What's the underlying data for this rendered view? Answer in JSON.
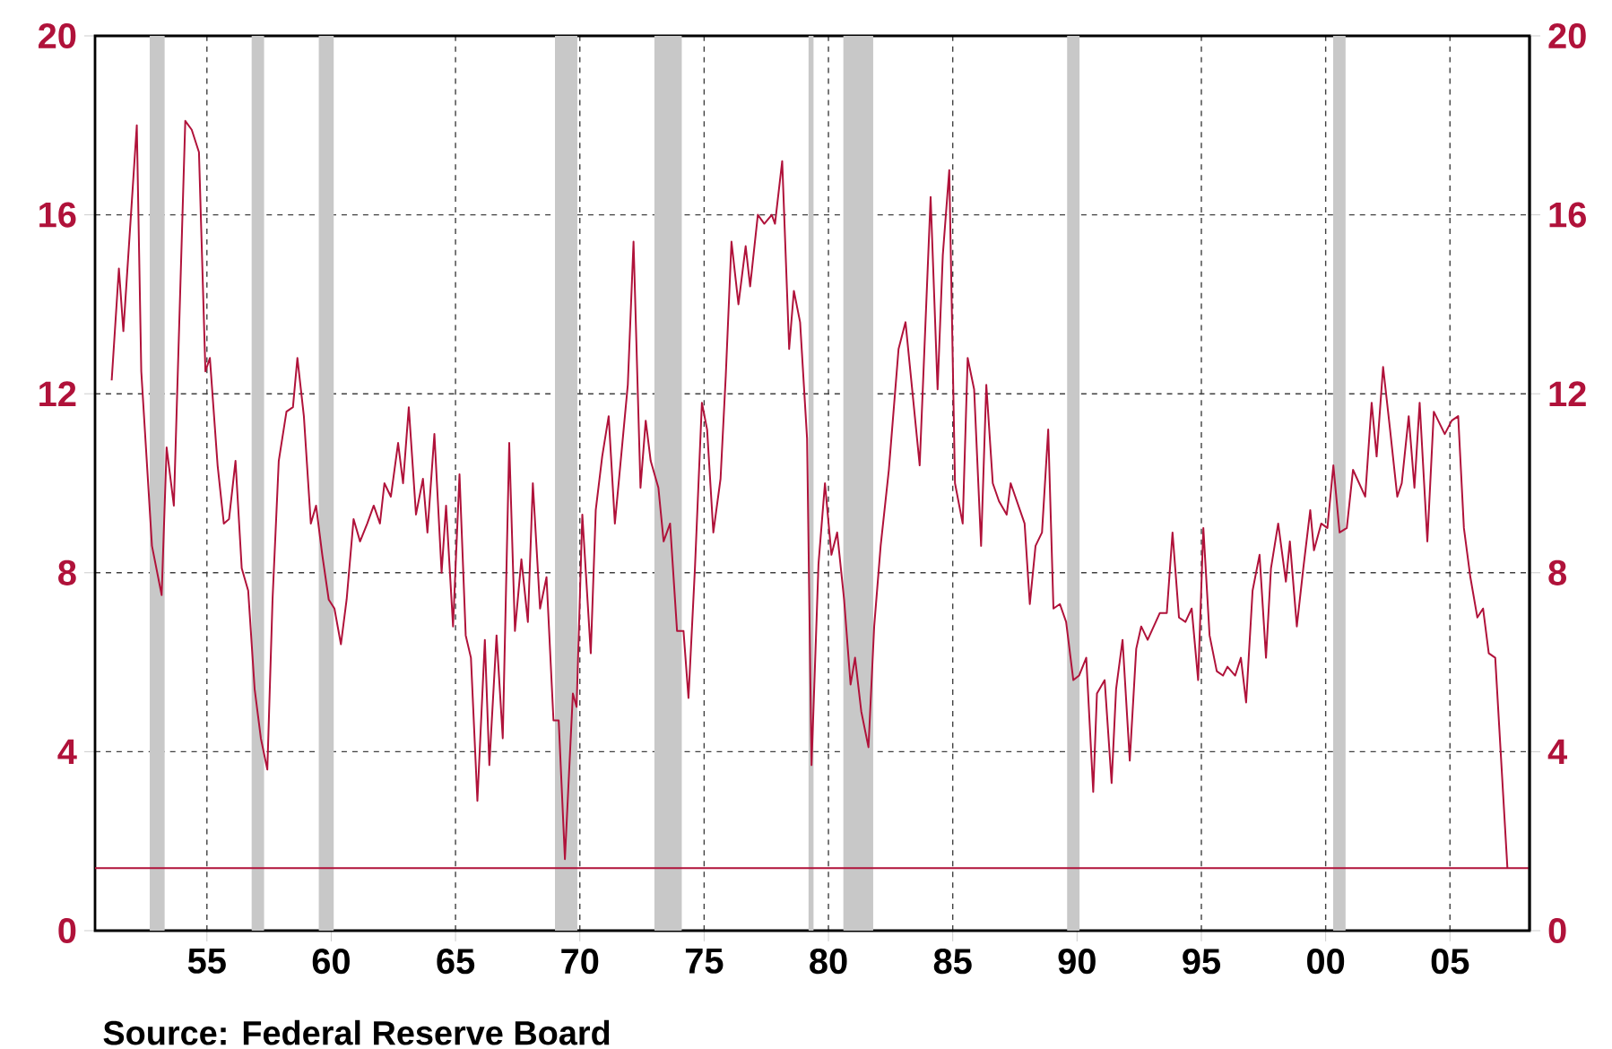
{
  "chart_data": {
    "type": "line",
    "xlim": [
      1950.5,
      2008.2
    ],
    "xticks": [
      {
        "value": 1955,
        "label": "55"
      },
      {
        "value": 1960,
        "label": "60"
      },
      {
        "value": 1965,
        "label": "65"
      },
      {
        "value": 1970,
        "label": "70"
      },
      {
        "value": 1975,
        "label": "75"
      },
      {
        "value": 1980,
        "label": "80"
      },
      {
        "value": 1985,
        "label": "85"
      },
      {
        "value": 1990,
        "label": "90"
      },
      {
        "value": 1995,
        "label": "95"
      },
      {
        "value": 2000,
        "label": "00"
      },
      {
        "value": 2005,
        "label": "05"
      }
    ],
    "ylim": [
      0,
      20
    ],
    "yticks": [
      0,
      4,
      8,
      12,
      16,
      20
    ],
    "y2lim": [
      0,
      20
    ],
    "y2ticks": [
      0,
      4,
      8,
      12,
      16,
      20
    ],
    "grid": true,
    "series": [
      {
        "color": "#b0123a",
        "x": [
          1951.17,
          1951.46,
          1951.64,
          1952.18,
          1952.36,
          1952.79,
          1953.18,
          1953.38,
          1953.67,
          1954.13,
          1954.39,
          1954.68,
          1954.94,
          1955.12,
          1955.43,
          1955.68,
          1955.89,
          1956.15,
          1956.4,
          1956.66,
          1956.92,
          1957.17,
          1957.43,
          1957.64,
          1957.89,
          1958.2,
          1958.46,
          1958.64,
          1958.9,
          1959.18,
          1959.39,
          1959.64,
          1959.9,
          1960.13,
          1960.39,
          1960.62,
          1960.9,
          1961.16,
          1961.45,
          1961.71,
          1961.96,
          1962.14,
          1962.4,
          1962.69,
          1962.89,
          1963.12,
          1963.41,
          1963.69,
          1963.87,
          1964.15,
          1964.44,
          1964.62,
          1964.9,
          1965.16,
          1965.41,
          1965.62,
          1965.88,
          1966.18,
          1966.36,
          1966.65,
          1966.9,
          1967.16,
          1967.39,
          1967.65,
          1967.91,
          1968.11,
          1968.4,
          1968.66,
          1968.94,
          1969.15,
          1969.4,
          1969.72,
          1969.87,
          1970.1,
          1970.44,
          1970.64,
          1970.9,
          1971.16,
          1971.41,
          1971.93,
          1972.16,
          1972.44,
          1972.65,
          1972.85,
          1973.16,
          1973.37,
          1973.63,
          1973.91,
          1974.17,
          1974.37,
          1974.63,
          1974.91,
          1975.12,
          1975.37,
          1975.66,
          1975.87,
          1976.1,
          1976.38,
          1976.67,
          1976.85,
          1977.16,
          1977.42,
          1977.72,
          1977.85,
          1978.14,
          1978.42,
          1978.61,
          1978.86,
          1979.14,
          1979.32,
          1979.6,
          1979.86,
          1980.12,
          1980.35,
          1980.63,
          1980.89,
          1981.07,
          1981.32,
          1981.61,
          1981.84,
          1982.1,
          1982.43,
          1982.82,
          1983.1,
          1983.67,
          1984.11,
          1984.39,
          1984.6,
          1984.86,
          1985.09,
          1985.4,
          1985.6,
          1985.86,
          1986.14,
          1986.35,
          1986.61,
          1986.86,
          1987.17,
          1987.33,
          1987.89,
          1988.1,
          1988.33,
          1988.59,
          1988.84,
          1989.05,
          1989.31,
          1989.56,
          1989.85,
          1990.08,
          1990.37,
          1990.65,
          1990.8,
          1991.11,
          1991.39,
          1991.57,
          1991.83,
          1992.12,
          1992.38,
          1992.58,
          1992.84,
          1993.33,
          1993.61,
          1993.84,
          1994.1,
          1994.36,
          1994.61,
          1994.87,
          1995.08,
          1995.33,
          1995.62,
          1995.87,
          1996.05,
          1996.36,
          1996.59,
          1996.8,
          1997.06,
          1997.34,
          1997.6,
          1997.8,
          1998.09,
          1998.4,
          1998.56,
          1998.84,
          1999.1,
          1999.38,
          1999.53,
          1999.82,
          2000.07,
          2000.31,
          2000.56,
          2000.85,
          2001.1,
          2001.59,
          2001.85,
          2002.05,
          2002.31,
          2002.59,
          2002.88,
          2003.06,
          2003.34,
          2003.57,
          2003.78,
          2004.09,
          2004.35,
          2004.79,
          2005.07,
          2005.33,
          2005.56,
          2005.82,
          2006.1,
          2006.33,
          2006.56,
          2006.82,
          2007.31
        ],
        "values": [
          12.3,
          14.8,
          13.4,
          18.0,
          12.5,
          8.6,
          7.5,
          10.8,
          9.5,
          18.1,
          17.9,
          17.4,
          12.5,
          12.8,
          10.4,
          9.1,
          9.2,
          10.5,
          8.1,
          7.6,
          5.4,
          4.3,
          3.6,
          7.4,
          10.5,
          11.6,
          11.7,
          12.8,
          11.5,
          9.1,
          9.5,
          8.4,
          7.4,
          7.2,
          6.4,
          7.4,
          9.2,
          8.7,
          9.1,
          9.5,
          9.1,
          10.0,
          9.7,
          10.9,
          10.0,
          11.7,
          9.3,
          10.1,
          8.9,
          11.1,
          8.0,
          9.5,
          6.8,
          10.2,
          6.6,
          6.1,
          2.9,
          6.5,
          3.7,
          6.6,
          4.3,
          10.9,
          6.7,
          8.3,
          6.9,
          10.0,
          7.2,
          7.9,
          4.7,
          4.7,
          1.6,
          5.3,
          5.0,
          9.3,
          6.2,
          9.4,
          10.6,
          11.5,
          9.1,
          12.2,
          15.4,
          9.9,
          11.4,
          10.5,
          9.9,
          8.7,
          9.1,
          6.7,
          6.7,
          5.2,
          8.1,
          11.8,
          11.2,
          8.9,
          10.1,
          12.4,
          15.4,
          14.0,
          15.3,
          14.4,
          16.0,
          15.8,
          16.0,
          15.8,
          17.2,
          13.0,
          14.3,
          13.6,
          11.0,
          3.7,
          8.2,
          10.0,
          8.4,
          8.9,
          7.4,
          5.5,
          6.1,
          4.9,
          4.1,
          6.8,
          8.6,
          10.3,
          13.0,
          13.6,
          10.4,
          16.4,
          12.1,
          15.1,
          17.0,
          10.0,
          9.1,
          12.8,
          12.1,
          8.6,
          12.2,
          10.0,
          9.6,
          9.3,
          10.0,
          9.1,
          7.3,
          8.6,
          8.9,
          11.2,
          7.2,
          7.3,
          6.9,
          5.6,
          5.7,
          6.1,
          3.1,
          5.3,
          5.6,
          3.3,
          5.4,
          6.5,
          3.8,
          6.3,
          6.8,
          6.5,
          7.1,
          7.1,
          8.9,
          7.0,
          6.9,
          7.2,
          5.6,
          9.0,
          6.6,
          5.8,
          5.7,
          5.9,
          5.7,
          6.1,
          5.1,
          7.6,
          8.4,
          6.1,
          8.1,
          9.1,
          7.8,
          8.7,
          6.8,
          8.1,
          9.4,
          8.5,
          9.1,
          9.0,
          10.4,
          8.9,
          9.0,
          10.3,
          9.7,
          11.8,
          10.6,
          12.6,
          11.2,
          9.7,
          10.0,
          11.5,
          9.9,
          11.8,
          8.7,
          11.6,
          11.1,
          11.4,
          11.5,
          9.0,
          7.9,
          7.0,
          7.2,
          6.2,
          6.1,
          1.4
        ]
      }
    ],
    "ref_lines": [
      {
        "axis": "y",
        "value": 1.4,
        "color": "#b0123a"
      }
    ],
    "bands": [
      {
        "axis": "x",
        "from": 1952.7,
        "to": 1953.3,
        "color": "#c8c8c8"
      },
      {
        "axis": "x",
        "from": 1956.8,
        "to": 1957.3,
        "color": "#c8c8c8"
      },
      {
        "axis": "x",
        "from": 1959.5,
        "to": 1960.1,
        "color": "#c8c8c8"
      },
      {
        "axis": "x",
        "from": 1969.0,
        "to": 1969.9,
        "color": "#c8c8c8"
      },
      {
        "axis": "x",
        "from": 1973.0,
        "to": 1974.1,
        "color": "#c8c8c8"
      },
      {
        "axis": "x",
        "from": 1979.2,
        "to": 1979.4,
        "color": "#c8c8c8"
      },
      {
        "axis": "x",
        "from": 1980.6,
        "to": 1981.8,
        "color": "#c8c8c8"
      },
      {
        "axis": "x",
        "from": 1989.6,
        "to": 1990.1,
        "color": "#c8c8c8"
      },
      {
        "axis": "x",
        "from": 2000.3,
        "to": 2000.8,
        "color": "#c8c8c8"
      }
    ],
    "annotations": [
      "Source:  Federal Reserve Board"
    ]
  }
}
